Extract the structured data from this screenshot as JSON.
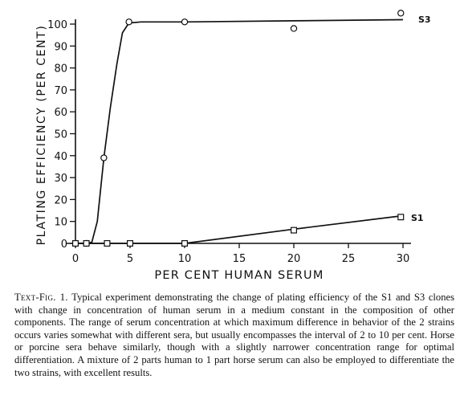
{
  "chart_data": {
    "type": "line",
    "title": "",
    "xlabel": "PER CENT HUMAN SERUM",
    "ylabel": "PLATING EFFICIENCY (PER CENT)",
    "xlim": [
      0,
      30
    ],
    "ylim": [
      0,
      100
    ],
    "xticks": [
      0,
      5,
      10,
      15,
      20,
      25,
      30
    ],
    "yticks": [
      0,
      10,
      20,
      30,
      40,
      50,
      60,
      70,
      80,
      90,
      100
    ],
    "grid": false,
    "series": [
      {
        "name": "S3",
        "marker": "circle",
        "points": [
          {
            "x": 0,
            "y": 0
          },
          {
            "x": 1,
            "y": 0
          },
          {
            "x": 2.6,
            "y": 39
          },
          {
            "x": 4.9,
            "y": 101
          },
          {
            "x": 10,
            "y": 101
          },
          {
            "x": 20,
            "y": 98
          },
          {
            "x": 29.8,
            "y": 105
          }
        ],
        "curve": [
          [
            0,
            0
          ],
          [
            1,
            0
          ],
          [
            1.5,
            0.5
          ],
          [
            2,
            10
          ],
          [
            2.6,
            39
          ],
          [
            3.2,
            62
          ],
          [
            3.8,
            82
          ],
          [
            4.3,
            96
          ],
          [
            4.9,
            100.5
          ],
          [
            6,
            101
          ],
          [
            10,
            101
          ],
          [
            20,
            101.5
          ],
          [
            30,
            102
          ]
        ]
      },
      {
        "name": "S1",
        "marker": "square",
        "points": [
          {
            "x": 0,
            "y": 0
          },
          {
            "x": 1,
            "y": 0
          },
          {
            "x": 2.9,
            "y": 0
          },
          {
            "x": 5,
            "y": 0
          },
          {
            "x": 10,
            "y": 0
          },
          {
            "x": 20,
            "y": 6
          },
          {
            "x": 29.8,
            "y": 12
          }
        ],
        "curve": [
          [
            0,
            0
          ],
          [
            10,
            0
          ],
          [
            20,
            6.5
          ],
          [
            29.8,
            12.5
          ]
        ]
      }
    ]
  },
  "caption": {
    "lead": "Text-Fig. 1.",
    "body": "Typical experiment demonstrating the change of plating efficiency of the S1 and S3 clones with change in concentration of human serum in a medium constant in the composition of other components. The range of serum concentration at which maximum difference in behavior of the 2 strains occurs varies somewhat with different sera, but usually encompasses the interval of 2 to 10 per cent. Horse or porcine sera behave similarly, though with a slightly narrower concentration range for optimal differentiation. A mixture of 2 parts human to 1 part horse serum can also be employed to differentiate the two strains, with excellent results."
  },
  "colors": {
    "ink": "#111111",
    "background": "#ffffff"
  }
}
